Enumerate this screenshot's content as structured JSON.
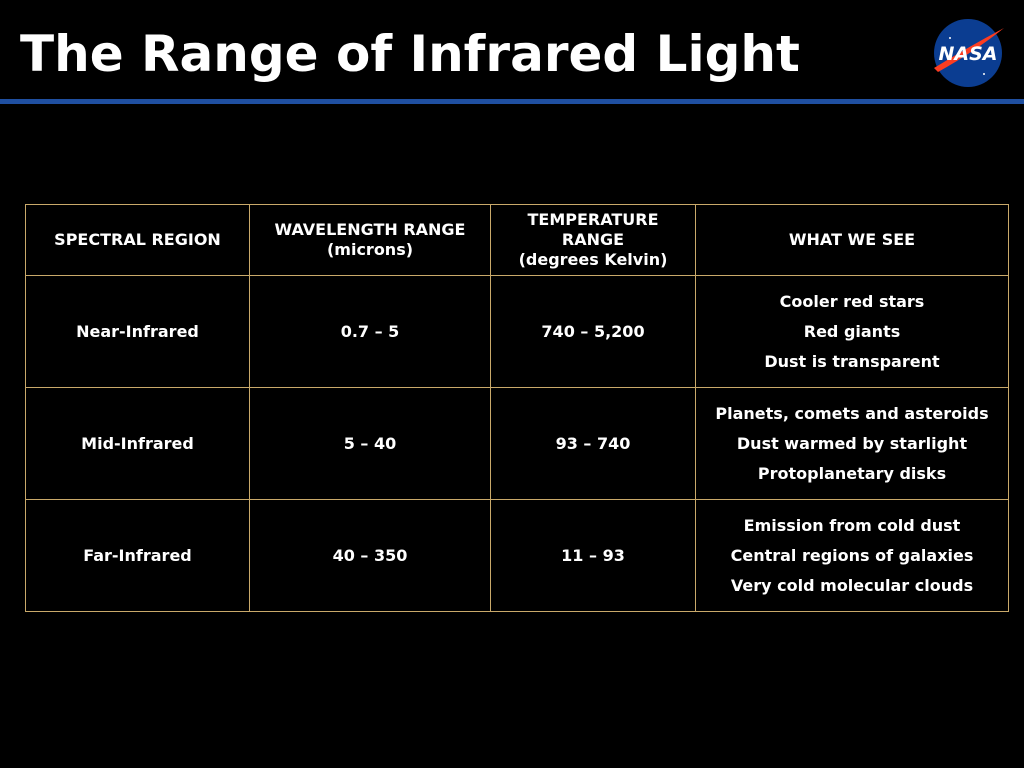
{
  "header": {
    "title": "The Range of Infrared Light",
    "logo": "NASA"
  },
  "table": {
    "header": [
      [
        "SPECTRAL REGION"
      ],
      [
        "WAVELENGTH RANGE",
        "(microns)"
      ],
      [
        "TEMPERATURE",
        "RANGE",
        "(degrees Kelvin)"
      ],
      [
        "WHAT WE SEE"
      ]
    ],
    "rows": [
      [
        "Near-Infrared",
        "0.7 – 5",
        "740 – 5,200",
        [
          "Cooler red stars",
          "Red giants",
          "Dust is transparent"
        ]
      ],
      [
        "Mid-Infrared",
        "5 – 40",
        "93 – 740",
        [
          "Planets, comets and asteroids",
          "Dust warmed by starlight",
          "Protoplanetary disks"
        ]
      ],
      [
        "Far-Infrared",
        "40 – 350",
        "11 – 93",
        [
          "Emission from cold dust",
          "Central regions of galaxies",
          "Very cold molecular clouds"
        ]
      ]
    ]
  }
}
